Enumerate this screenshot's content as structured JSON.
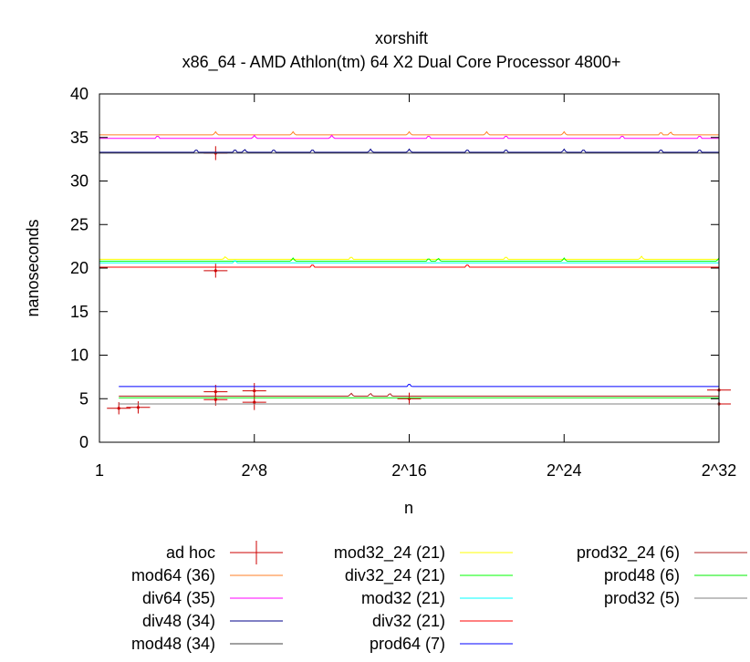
{
  "chart_data": {
    "type": "line",
    "title": "xorshift",
    "subtitle": "x86_64 - AMD Athlon(tm) 64 X2 Dual Core Processor 4800+",
    "xlabel": "n",
    "ylabel": "nanoseconds",
    "xscale": "log2",
    "xlim": [
      0,
      32
    ],
    "ylim": [
      0,
      40
    ],
    "yticks": [
      0,
      5,
      10,
      15,
      20,
      25,
      30,
      35,
      40
    ],
    "xticks": [
      {
        "value": 0,
        "label": "1"
      },
      {
        "value": 8,
        "label": "2^8"
      },
      {
        "value": 16,
        "label": "2^16"
      },
      {
        "value": 24,
        "label": "2^24"
      },
      {
        "value": 32,
        "label": "2^32"
      }
    ],
    "series": [
      {
        "name": "ad hoc",
        "style": "points",
        "color": "#cc0000",
        "points": [
          {
            "x": 1,
            "y": 3.9,
            "err": 0.7
          },
          {
            "x": 2,
            "y": 4.0,
            "err": 0.7
          },
          {
            "x": 6,
            "y": 33.2,
            "err": 0.8
          },
          {
            "x": 6,
            "y": 19.7,
            "err": 0.8
          },
          {
            "x": 6,
            "y": 5.8,
            "err": 0.8
          },
          {
            "x": 6,
            "y": 4.9,
            "err": 0.7
          },
          {
            "x": 8,
            "y": 5.9,
            "err": 0.9
          },
          {
            "x": 8,
            "y": 4.6,
            "err": 0.9
          },
          {
            "x": 16,
            "y": 5.0,
            "err": 0.7
          },
          {
            "x": 32,
            "y": 6.0,
            "err": 0.9
          },
          {
            "x": 32,
            "y": 4.4,
            "err": 0.9
          }
        ]
      },
      {
        "name": "mod64 (36)",
        "color": "#ff7f24",
        "level": 35.3,
        "spikes": [
          6,
          10,
          16,
          20,
          24,
          29,
          29.5
        ]
      },
      {
        "name": "div64 (35)",
        "color": "#ff00ff",
        "level": 34.9,
        "spikes": [
          3,
          8,
          12,
          17,
          21,
          27,
          31
        ]
      },
      {
        "name": "div48 (34)",
        "color": "#00008b",
        "level": 33.3,
        "spikes": [
          5,
          7,
          7.5,
          9,
          11,
          14,
          16,
          19,
          21,
          24,
          25,
          29,
          31
        ]
      },
      {
        "name": "mod48 (34)",
        "color": "#404040",
        "level": 33.2,
        "spikes": []
      },
      {
        "name": "mod32_24 (21)",
        "color": "#ffff00",
        "level": 21.0,
        "spikes": [
          6.5,
          13,
          21,
          28
        ]
      },
      {
        "name": "div32_24 (21)",
        "color": "#00ff00",
        "level": 20.8,
        "spikes": [
          10,
          17,
          17.5,
          24,
          32
        ]
      },
      {
        "name": "mod32 (21)",
        "color": "#00ffff",
        "level": 20.6,
        "spikes": [
          7
        ]
      },
      {
        "name": "div32 (21)",
        "color": "#ff0000",
        "level": 20.1,
        "spikes": [
          11,
          19
        ]
      },
      {
        "name": "prod64 (7)",
        "color": "#0000ff",
        "level": 6.4,
        "spikes": [
          16
        ]
      },
      {
        "name": "prod32_24 (6)",
        "color": "#b22222",
        "level": 5.3,
        "spikes": [
          13,
          14,
          15
        ]
      },
      {
        "name": "prod48 (6)",
        "color": "#00ee00",
        "level": 5.1,
        "spikes": []
      },
      {
        "name": "prod32 (5)",
        "color": "#808080",
        "level": 4.4,
        "spikes": []
      }
    ],
    "legend_position": "below"
  }
}
